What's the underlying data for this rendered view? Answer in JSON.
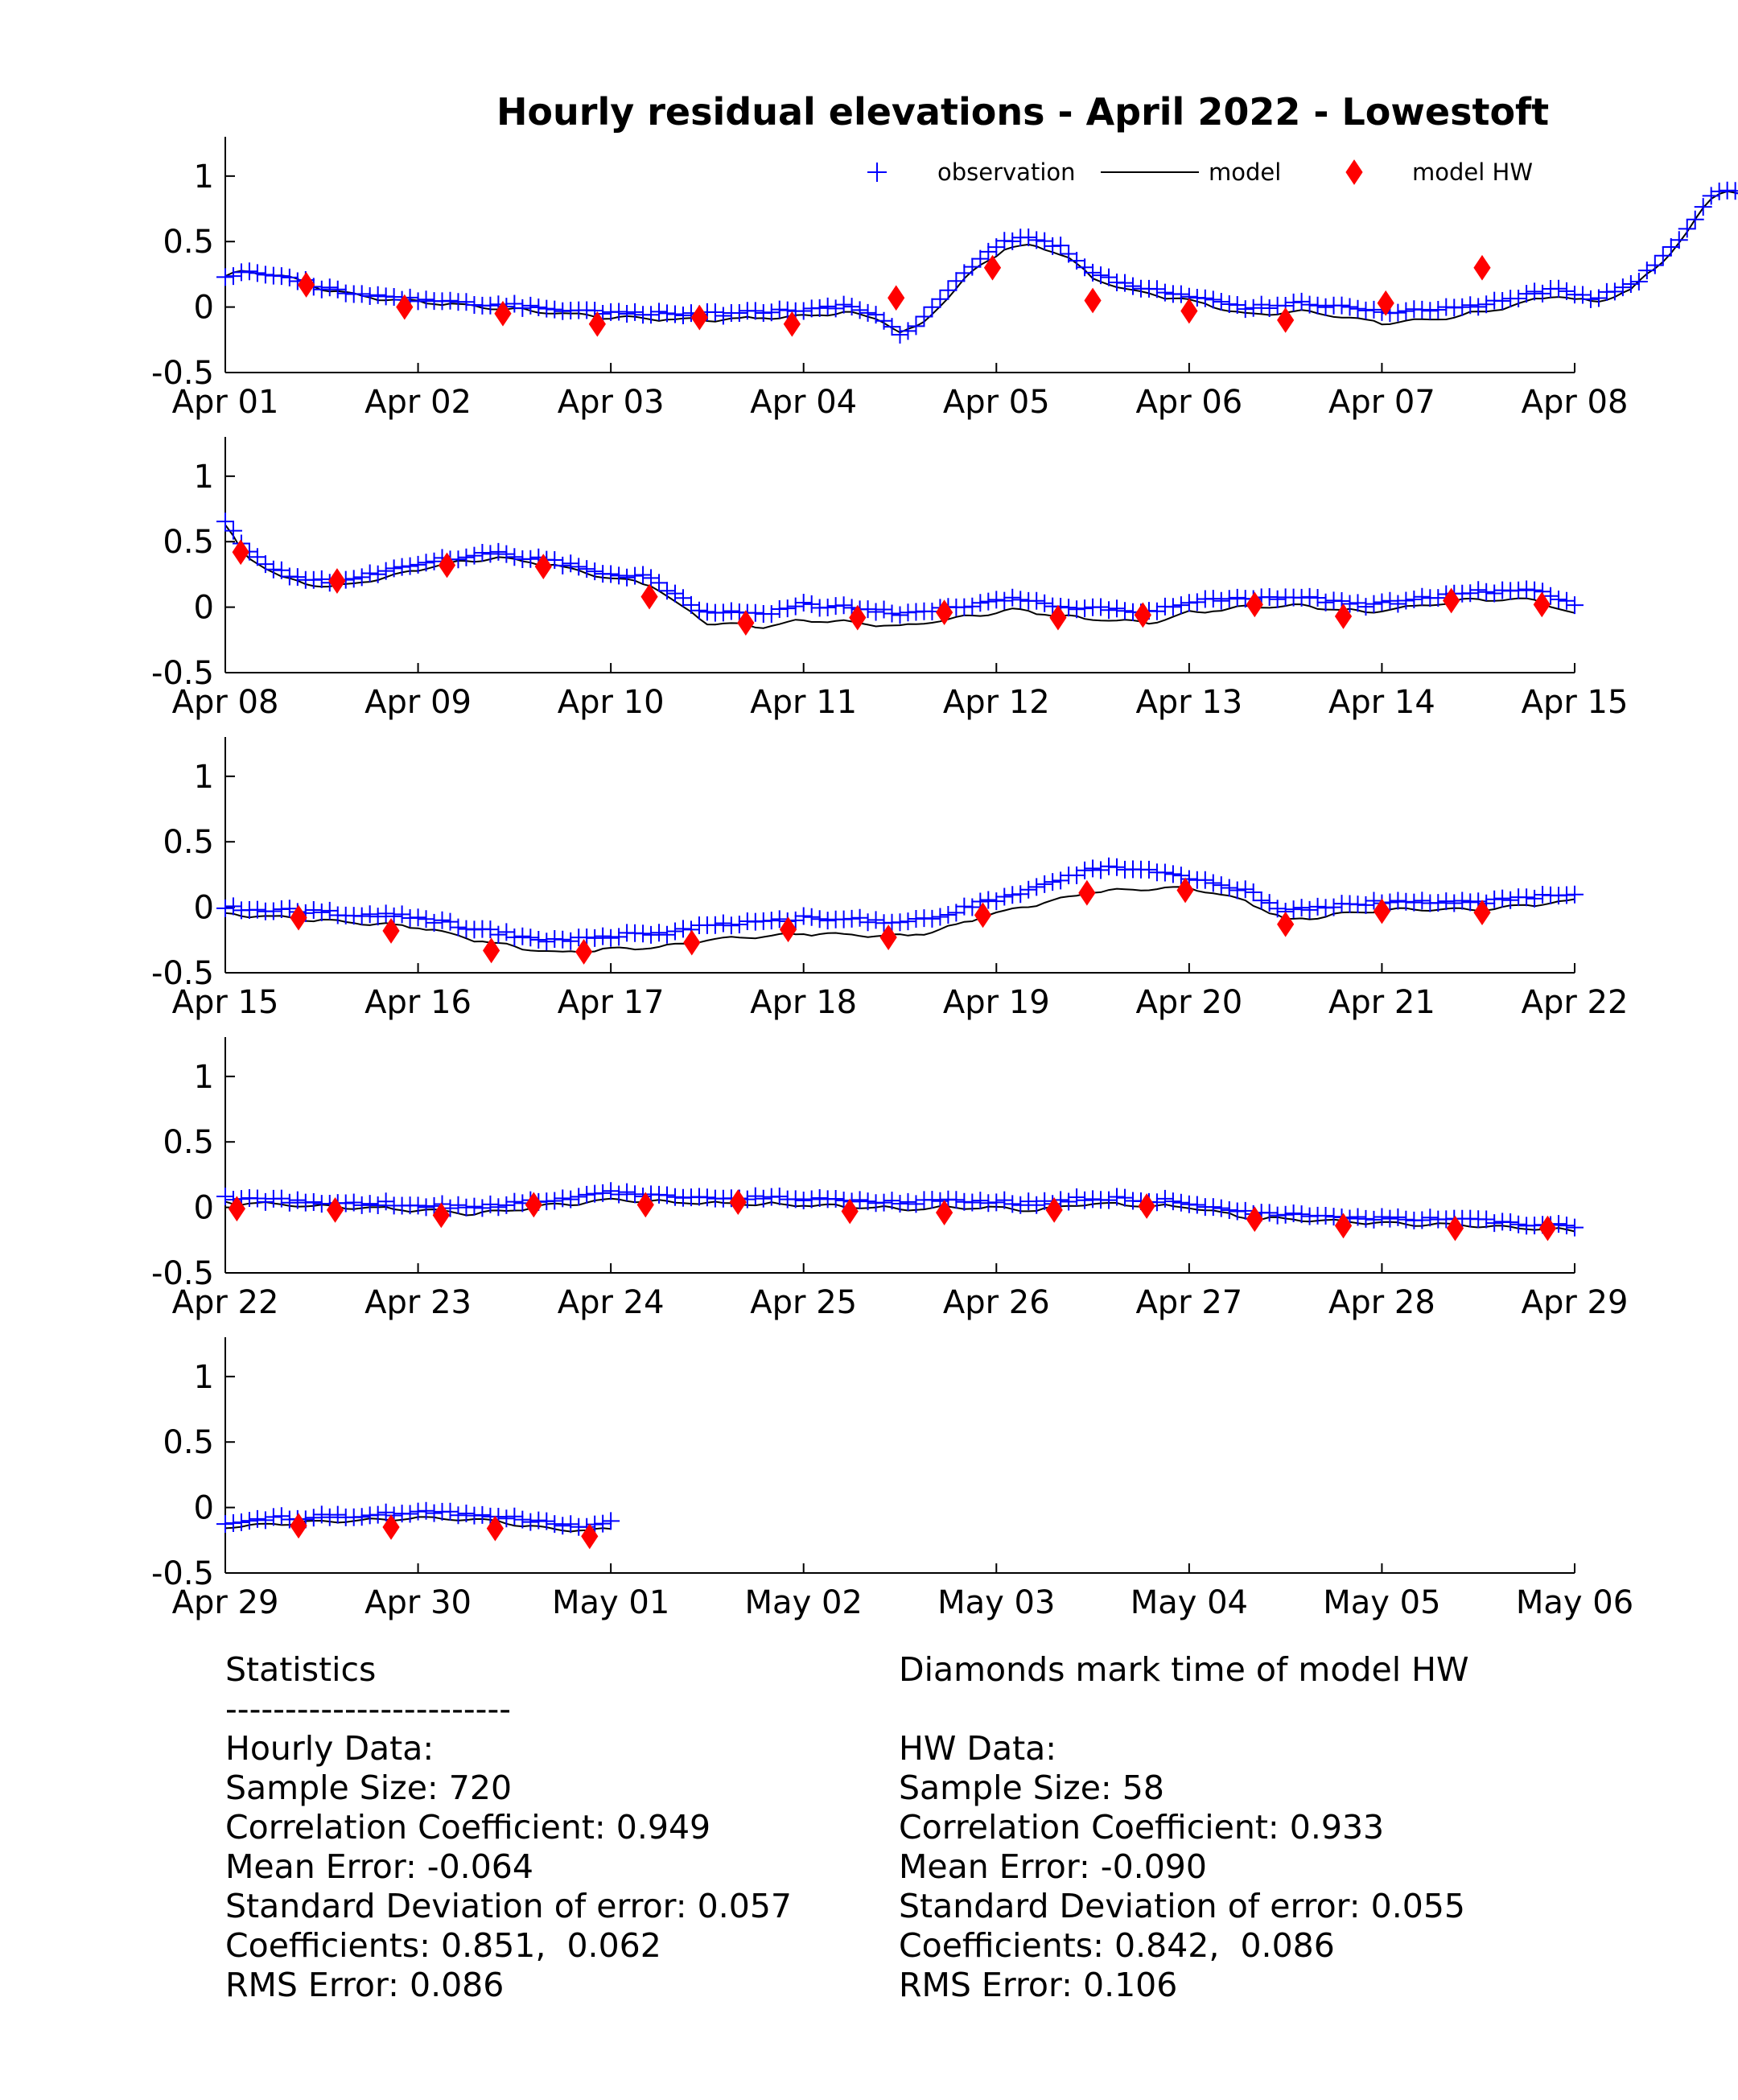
{
  "chart_data": {
    "type": "line",
    "title": "Hourly residual elevations - April  2022 - Lowestoft",
    "legend": {
      "placement": "top-right",
      "entries": [
        {
          "label": "observation",
          "marker": "plus",
          "color": "#0000ff"
        },
        {
          "label": "model",
          "marker": "line",
          "color": "#000000"
        },
        {
          "label": "model HW",
          "marker": "diamond",
          "color": "#ff0000"
        }
      ]
    },
    "y_ticks": [
      "1",
      "0.5",
      "0",
      "-0.5"
    ],
    "y_tick_values": [
      1,
      0.5,
      0,
      -0.5
    ],
    "ylim": [
      -0.5,
      1.3
    ],
    "colors": {
      "observation": "#0000ff",
      "model": "#000000",
      "model_hw": "#ff0000"
    },
    "panels": [
      {
        "x_ticks": [
          "Apr 01",
          "Apr 02",
          "Apr 03",
          "Apr 04",
          "Apr 05",
          "Apr 06",
          "Apr 07",
          "Apr 08"
        ],
        "model_knots": [
          [
            0,
            0.24
          ],
          [
            0.1,
            0.27
          ],
          [
            0.3,
            0.24
          ],
          [
            0.5,
            0.14
          ],
          [
            0.8,
            0.06
          ],
          [
            1.1,
            0.03
          ],
          [
            1.5,
            -0.02
          ],
          [
            2.0,
            -0.08
          ],
          [
            2.5,
            -0.1
          ],
          [
            3.0,
            -0.07
          ],
          [
            3.2,
            -0.04
          ],
          [
            3.4,
            -0.09
          ],
          [
            3.5,
            -0.2
          ],
          [
            3.6,
            -0.15
          ],
          [
            3.75,
            0.08
          ],
          [
            3.9,
            0.3
          ],
          [
            4.05,
            0.45
          ],
          [
            4.2,
            0.47
          ],
          [
            4.35,
            0.4
          ],
          [
            4.5,
            0.22
          ],
          [
            4.7,
            0.12
          ],
          [
            5.0,
            0.05
          ],
          [
            5.3,
            -0.06
          ],
          [
            5.6,
            -0.03
          ],
          [
            6.0,
            -0.12
          ],
          [
            6.3,
            -0.09
          ],
          [
            6.55,
            -0.03
          ],
          [
            6.9,
            0.09
          ],
          [
            7.1,
            0.03
          ],
          [
            7.3,
            0.14
          ],
          [
            7.45,
            0.34
          ],
          [
            7.6,
            0.6
          ],
          [
            7.7,
            0.82
          ],
          [
            7.78,
            0.9
          ],
          [
            7.87,
            0.86
          ],
          [
            7.95,
            0.75
          ],
          [
            8.0,
            0.72
          ]
        ],
        "obs_offset": [
          [
            0,
            0.0
          ],
          [
            2,
            0.04
          ],
          [
            3.2,
            0.05
          ],
          [
            3.5,
            0.0
          ],
          [
            3.7,
            0.06
          ],
          [
            5,
            0.04
          ],
          [
            6,
            0.08
          ],
          [
            7,
            0.04
          ],
          [
            8,
            0.0
          ]
        ],
        "hw": [
          [
            0.42,
            0.17
          ],
          [
            0.93,
            0.0
          ],
          [
            1.44,
            -0.05
          ],
          [
            1.93,
            -0.13
          ],
          [
            2.46,
            -0.08
          ],
          [
            2.94,
            -0.13
          ],
          [
            3.48,
            0.07
          ],
          [
            3.98,
            0.3
          ],
          [
            4.5,
            0.05
          ],
          [
            5.0,
            -0.03
          ],
          [
            5.5,
            -0.1
          ],
          [
            6.02,
            0.03
          ],
          [
            6.52,
            0.3
          ]
        ]
      },
      {
        "x_ticks": [
          "Apr 08",
          "Apr 09",
          "Apr 10",
          "Apr 11",
          "Apr 12",
          "Apr 13",
          "Apr 14",
          "Apr 15"
        ],
        "model_knots": [
          [
            0,
            0.62
          ],
          [
            0.1,
            0.4
          ],
          [
            0.3,
            0.22
          ],
          [
            0.55,
            0.15
          ],
          [
            0.8,
            0.22
          ],
          [
            1.1,
            0.32
          ],
          [
            1.4,
            0.38
          ],
          [
            1.7,
            0.32
          ],
          [
            2.0,
            0.22
          ],
          [
            2.2,
            0.18
          ],
          [
            2.35,
            0.02
          ],
          [
            2.5,
            -0.12
          ],
          [
            2.8,
            -0.15
          ],
          [
            3.0,
            -0.1
          ],
          [
            3.3,
            -0.12
          ],
          [
            3.5,
            -0.15
          ],
          [
            3.8,
            -0.08
          ],
          [
            4.1,
            -0.02
          ],
          [
            4.4,
            -0.08
          ],
          [
            4.8,
            -0.12
          ],
          [
            5.0,
            -0.04
          ],
          [
            5.3,
            0.0
          ],
          [
            5.6,
            0.01
          ],
          [
            5.9,
            -0.04
          ],
          [
            6.2,
            0.01
          ],
          [
            6.5,
            0.06
          ],
          [
            6.8,
            0.06
          ],
          [
            7.0,
            -0.06
          ]
        ],
        "obs_offset": [
          [
            0,
            0.04
          ],
          [
            2,
            0.03
          ],
          [
            3,
            0.12
          ],
          [
            4,
            0.08
          ],
          [
            5,
            0.08
          ],
          [
            6,
            0.05
          ],
          [
            7,
            0.07
          ]
        ],
        "hw": [
          [
            0.08,
            0.42
          ],
          [
            0.58,
            0.2
          ],
          [
            1.15,
            0.32
          ],
          [
            1.65,
            0.31
          ],
          [
            2.2,
            0.08
          ],
          [
            2.7,
            -0.12
          ],
          [
            3.28,
            -0.08
          ],
          [
            3.73,
            -0.04
          ],
          [
            4.32,
            -0.08
          ],
          [
            4.76,
            -0.06
          ],
          [
            5.34,
            0.02
          ],
          [
            5.8,
            -0.07
          ],
          [
            6.36,
            0.05
          ],
          [
            6.83,
            0.02
          ]
        ]
      },
      {
        "x_ticks": [
          "Apr 15",
          "Apr 16",
          "Apr 17",
          "Apr 18",
          "Apr 19",
          "Apr 20",
          "Apr 21",
          "Apr 22"
        ],
        "model_knots": [
          [
            0,
            -0.05
          ],
          [
            0.5,
            -0.1
          ],
          [
            1.0,
            -0.15
          ],
          [
            1.3,
            -0.25
          ],
          [
            1.7,
            -0.35
          ],
          [
            2.0,
            -0.32
          ],
          [
            2.3,
            -0.3
          ],
          [
            2.5,
            -0.25
          ],
          [
            3.0,
            -0.2
          ],
          [
            3.5,
            -0.22
          ],
          [
            3.7,
            -0.18
          ],
          [
            3.9,
            -0.08
          ],
          [
            4.2,
            0.02
          ],
          [
            4.5,
            0.12
          ],
          [
            5.0,
            0.15
          ],
          [
            5.3,
            0.05
          ],
          [
            5.5,
            -0.1
          ],
          [
            5.8,
            -0.05
          ],
          [
            6.0,
            -0.02
          ],
          [
            6.5,
            -0.02
          ],
          [
            7.0,
            0.05
          ]
        ],
        "obs_offset": [
          [
            0,
            0.05
          ],
          [
            2,
            0.1
          ],
          [
            3,
            0.12
          ],
          [
            4,
            0.1
          ],
          [
            4.6,
            0.18
          ],
          [
            5,
            0.08
          ],
          [
            6,
            0.06
          ],
          [
            7,
            0.05
          ]
        ],
        "hw": [
          [
            0.38,
            -0.08
          ],
          [
            0.86,
            -0.18
          ],
          [
            1.38,
            -0.33
          ],
          [
            1.86,
            -0.34
          ],
          [
            2.42,
            -0.27
          ],
          [
            2.92,
            -0.17
          ],
          [
            3.44,
            -0.23
          ],
          [
            3.93,
            -0.06
          ],
          [
            4.47,
            0.11
          ],
          [
            4.98,
            0.13
          ],
          [
            5.5,
            -0.13
          ],
          [
            6.0,
            -0.03
          ],
          [
            6.52,
            -0.04
          ]
        ]
      },
      {
        "x_ticks": [
          "Apr 22",
          "Apr 23",
          "Apr 24",
          "Apr 25",
          "Apr 26",
          "Apr 27",
          "Apr 28",
          "Apr 29"
        ],
        "model_knots": [
          [
            0,
            0.04
          ],
          [
            0.3,
            0.02
          ],
          [
            1.0,
            -0.02
          ],
          [
            1.3,
            -0.05
          ],
          [
            1.6,
            0.0
          ],
          [
            2.0,
            0.06
          ],
          [
            2.5,
            0.03
          ],
          [
            3.0,
            0.02
          ],
          [
            3.5,
            -0.01
          ],
          [
            3.9,
            0.0
          ],
          [
            4.2,
            -0.02
          ],
          [
            4.5,
            0.03
          ],
          [
            5.0,
            0.0
          ],
          [
            5.3,
            -0.08
          ],
          [
            5.7,
            -0.1
          ],
          [
            6.0,
            -0.12
          ],
          [
            6.5,
            -0.14
          ],
          [
            7.0,
            -0.18
          ]
        ],
        "obs_offset": [
          [
            0,
            0.03
          ],
          [
            2,
            0.05
          ],
          [
            4,
            0.05
          ],
          [
            5,
            0.04
          ],
          [
            6,
            0.04
          ],
          [
            7,
            0.03
          ]
        ],
        "hw": [
          [
            0.06,
            -0.01
          ],
          [
            0.57,
            -0.02
          ],
          [
            1.12,
            -0.06
          ],
          [
            1.6,
            0.02
          ],
          [
            2.18,
            0.02
          ],
          [
            2.66,
            0.04
          ],
          [
            3.24,
            -0.03
          ],
          [
            3.73,
            -0.04
          ],
          [
            4.3,
            -0.02
          ],
          [
            4.78,
            0.01
          ],
          [
            5.34,
            -0.09
          ],
          [
            5.8,
            -0.14
          ],
          [
            6.38,
            -0.16
          ],
          [
            6.86,
            -0.16
          ]
        ]
      },
      {
        "x_ticks": [
          "Apr 29",
          "Apr 30",
          "May 01",
          "May 02",
          "May 03",
          "May 04",
          "May 05",
          "May 06"
        ],
        "model_knots": [
          [
            0,
            -0.15
          ],
          [
            0.3,
            -0.12
          ],
          [
            0.7,
            -0.1
          ],
          [
            1.0,
            -0.08
          ],
          [
            1.4,
            -0.1
          ],
          [
            1.6,
            -0.15
          ],
          [
            1.9,
            -0.18
          ],
          [
            2.0,
            -0.16
          ]
        ],
        "obs_offset": [
          [
            0,
            0.04
          ],
          [
            2,
            0.04
          ]
        ],
        "hw": [
          [
            0.38,
            -0.14
          ],
          [
            0.86,
            -0.15
          ],
          [
            1.4,
            -0.16
          ],
          [
            1.89,
            -0.22
          ]
        ]
      }
    ]
  },
  "stats": {
    "left": [
      "Statistics",
      "------------------------",
      "Hourly Data:",
      "Sample Size: 720",
      "Correlation Coefficient: 0.949",
      "Mean Error: -0.064",
      "Standard Deviation of error: 0.057",
      "Coefficients: 0.851,  0.062",
      "RMS Error: 0.086"
    ],
    "right": [
      "Diamonds mark time of model HW",
      "",
      "HW Data:",
      "Sample Size: 58",
      "Correlation Coefficient: 0.933",
      "Mean Error: -0.090",
      "Standard Deviation of error: 0.055",
      "Coefficients: 0.842,  0.086",
      "RMS Error: 0.106"
    ]
  }
}
